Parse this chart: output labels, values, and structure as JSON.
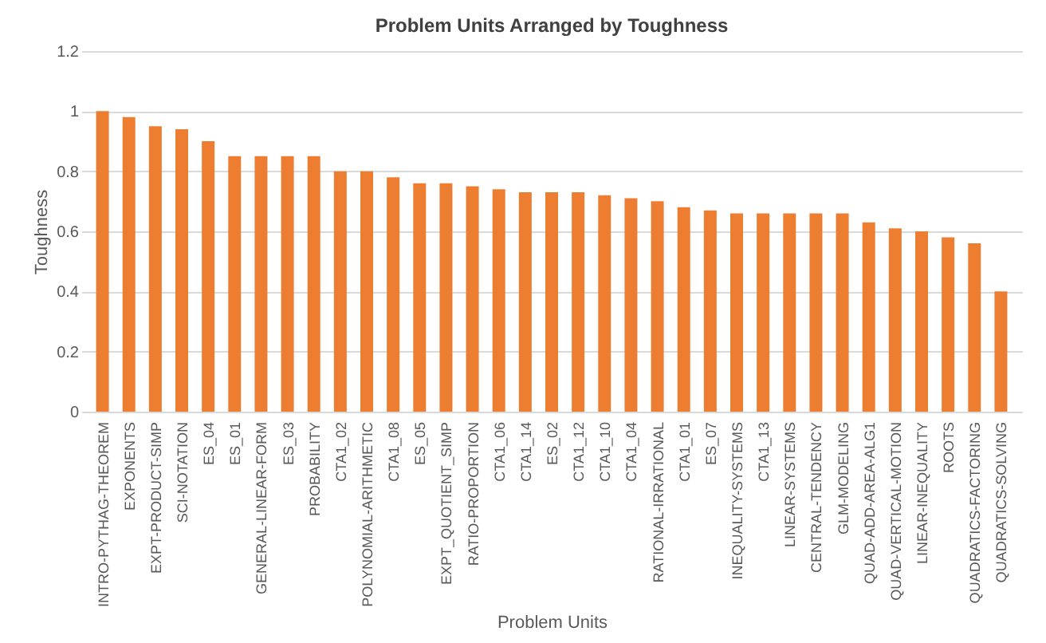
{
  "chart_data": {
    "type": "bar",
    "title": "Problem Units Arranged by Toughness",
    "xlabel": "Problem Units",
    "ylabel": "Toughness",
    "categories": [
      "INTRO-PYTHAG-THEOREM",
      "EXPONENTS",
      "EXPT-PRODUCT-SIMP",
      "SCI-NOTATION",
      "ES_04",
      "ES_01",
      "GENERAL-LINEAR-FORM",
      "ES_03",
      "PROBABILITY",
      "CTA1_02",
      "POLYNOMIAL-ARITHMETIC",
      "CTA1_08",
      "ES_05",
      "EXPT_QUOTIENT_SIMP",
      "RATIO-PROPORTION",
      "CTA1_06",
      "CTA1_14",
      "ES_02",
      "CTA1_12",
      "CTA1_10",
      "CTA1_04",
      "RATIONAL-IRRATIONAL",
      "CTA1_01",
      "ES_07",
      "INEQUALITY-SYSTEMS",
      "CTA1_13",
      "LINEAR-SYSTEMS",
      "CENTRAL-TENDENCY",
      "GLM-MODELING",
      "QUAD-ADD-AREA-ALG1",
      "QUAD-VERTICAL-MOTION",
      "LINEAR-INEQUALITY",
      "ROOTS",
      "QUADRATICS-FACTORING",
      "QUADRATICS-SOLVING"
    ],
    "values": [
      1.0,
      0.98,
      0.95,
      0.94,
      0.9,
      0.85,
      0.85,
      0.85,
      0.85,
      0.8,
      0.8,
      0.78,
      0.76,
      0.76,
      0.75,
      0.74,
      0.73,
      0.73,
      0.73,
      0.72,
      0.71,
      0.7,
      0.68,
      0.67,
      0.66,
      0.66,
      0.66,
      0.66,
      0.66,
      0.63,
      0.61,
      0.6,
      0.58,
      0.56,
      0.4
    ],
    "color": "#ed7d31",
    "ylim": [
      0,
      1.2
    ],
    "yticks": [
      0,
      0.2,
      0.4,
      0.6,
      0.8,
      1,
      1.2
    ],
    "grid": "y"
  }
}
